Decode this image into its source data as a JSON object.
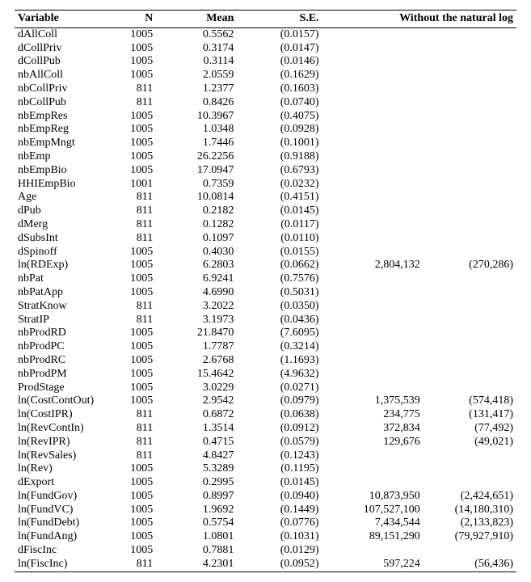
{
  "table": {
    "headers": {
      "variable": "Variable",
      "n": "N",
      "mean": "Mean",
      "se": "S.E.",
      "without": "Without the natural log"
    },
    "rows": [
      {
        "variable": "dAllColl",
        "n": "1005",
        "mean": "0.5562",
        "se": "(0.0157)",
        "w1": "",
        "w2": ""
      },
      {
        "variable": "dCollPriv",
        "n": "1005",
        "mean": "0.3174",
        "se": "(0.0147)",
        "w1": "",
        "w2": ""
      },
      {
        "variable": "dCollPub",
        "n": "1005",
        "mean": "0.3114",
        "se": "(0.0146)",
        "w1": "",
        "w2": ""
      },
      {
        "variable": "nbAllColl",
        "n": "1005",
        "mean": "2.0559",
        "se": "(0.1629)",
        "w1": "",
        "w2": ""
      },
      {
        "variable": "nbCollPriv",
        "n": "811",
        "mean": "1.2377",
        "se": "(0.1603)",
        "w1": "",
        "w2": ""
      },
      {
        "variable": "nbCollPub",
        "n": "811",
        "mean": "0.8426",
        "se": "(0.0740)",
        "w1": "",
        "w2": ""
      },
      {
        "variable": "nbEmpRes",
        "n": "1005",
        "mean": "10.3967",
        "se": "(0.4075)",
        "w1": "",
        "w2": ""
      },
      {
        "variable": "nbEmpReg",
        "n": "1005",
        "mean": "1.0348",
        "se": "(0.0928)",
        "w1": "",
        "w2": ""
      },
      {
        "variable": "nbEmpMngt",
        "n": "1005",
        "mean": "1.7446",
        "se": "(0.1001)",
        "w1": "",
        "w2": ""
      },
      {
        "variable": "nbEmp",
        "n": "1005",
        "mean": "26.2256",
        "se": "(0.9188)",
        "w1": "",
        "w2": ""
      },
      {
        "variable": "nbEmpBio",
        "n": "1005",
        "mean": "17.0947",
        "se": "(0.6793)",
        "w1": "",
        "w2": ""
      },
      {
        "variable": "HHIEmpBio",
        "n": "1001",
        "mean": "0.7359",
        "se": "(0.0232)",
        "w1": "",
        "w2": ""
      },
      {
        "variable": "Age",
        "n": "811",
        "mean": "10.0814",
        "se": "(0.4151)",
        "w1": "",
        "w2": ""
      },
      {
        "variable": "dPub",
        "n": "811",
        "mean": "0.2182",
        "se": "(0.0145)",
        "w1": "",
        "w2": ""
      },
      {
        "variable": "dMerg",
        "n": "811",
        "mean": "0.1282",
        "se": "(0.0117)",
        "w1": "",
        "w2": ""
      },
      {
        "variable": "dSubsInt",
        "n": "811",
        "mean": "0.1097",
        "se": "(0.0110)",
        "w1": "",
        "w2": ""
      },
      {
        "variable": "dSpinoff",
        "n": "1005",
        "mean": "0.4030",
        "se": "(0.0155)",
        "w1": "",
        "w2": ""
      },
      {
        "variable": "ln(RDExp)",
        "n": "1005",
        "mean": "6.2803",
        "se": "(0.0662)",
        "w1": "2,804,132",
        "w2": "(270,286)"
      },
      {
        "variable": "nbPat",
        "n": "1005",
        "mean": "6.9241",
        "se": "(0.7576)",
        "w1": "",
        "w2": ""
      },
      {
        "variable": "nbPatApp",
        "n": "1005",
        "mean": "4.6990",
        "se": "(0.5031)",
        "w1": "",
        "w2": ""
      },
      {
        "variable": "StratKnow",
        "n": "811",
        "mean": "3.2022",
        "se": "(0.0350)",
        "w1": "",
        "w2": ""
      },
      {
        "variable": "StratIP",
        "n": "811",
        "mean": "3.1973",
        "se": "(0.0436)",
        "w1": "",
        "w2": ""
      },
      {
        "variable": "nbProdRD",
        "n": "1005",
        "mean": "21.8470",
        "se": "(7.6095)",
        "w1": "",
        "w2": ""
      },
      {
        "variable": "nbProdPC",
        "n": "1005",
        "mean": "1.7787",
        "se": "(0.3214)",
        "w1": "",
        "w2": ""
      },
      {
        "variable": "nbProdRC",
        "n": "1005",
        "mean": "2.6768",
        "se": "(1.1693)",
        "w1": "",
        "w2": ""
      },
      {
        "variable": "nbProdPM",
        "n": "1005",
        "mean": "15.4642",
        "se": "(4.9632)",
        "w1": "",
        "w2": ""
      },
      {
        "variable": "ProdStage",
        "n": "1005",
        "mean": "3.0229",
        "se": "(0.0271)",
        "w1": "",
        "w2": ""
      },
      {
        "variable": "ln(CostContOut)",
        "n": "1005",
        "mean": "2.9542",
        "se": "(0.0979)",
        "w1": "1,375,539",
        "w2": "(574,418)"
      },
      {
        "variable": "ln(CostIPR)",
        "n": "811",
        "mean": "0.6872",
        "se": "(0.0638)",
        "w1": "234,775",
        "w2": "(131,417)"
      },
      {
        "variable": "ln(RevContIn)",
        "n": "811",
        "mean": "1.3514",
        "se": "(0.0912)",
        "w1": "372,834",
        "w2": "(77,492)"
      },
      {
        "variable": "ln(RevIPR)",
        "n": "811",
        "mean": "0.4715",
        "se": "(0.0579)",
        "w1": "129,676",
        "w2": "(49,021)"
      },
      {
        "variable": "ln(RevSales)",
        "n": "811",
        "mean": "4.8427",
        "se": "(0.1243)",
        "w1": "",
        "w2": ""
      },
      {
        "variable": "ln(Rev)",
        "n": "1005",
        "mean": "5.3289",
        "se": "(0.1195)",
        "w1": "",
        "w2": ""
      },
      {
        "variable": "dExport",
        "n": "1005",
        "mean": "0.2995",
        "se": "(0.0145)",
        "w1": "",
        "w2": ""
      },
      {
        "variable": "ln(FundGov)",
        "n": "1005",
        "mean": "0.8997",
        "se": "(0.0940)",
        "w1": "10,873,950",
        "w2": "(2,424,651)"
      },
      {
        "variable": "ln(FundVC)",
        "n": "1005",
        "mean": "1.9692",
        "se": "(0.1449)",
        "w1": "107,527,100",
        "w2": "(14,180,310)"
      },
      {
        "variable": "ln(FundDebt)",
        "n": "1005",
        "mean": "0.5754",
        "se": "(0.0776)",
        "w1": "7,434,544",
        "w2": "(2,133,823)"
      },
      {
        "variable": "ln(FundAng)",
        "n": "1005",
        "mean": "1.0801",
        "se": "(0.1031)",
        "w1": "89,151,290",
        "w2": "(79,927,910)"
      },
      {
        "variable": "dFiscInc",
        "n": "1005",
        "mean": "0.7881",
        "se": "(0.0129)",
        "w1": "",
        "w2": ""
      },
      {
        "variable": "ln(FiscInc)",
        "n": "811",
        "mean": "4.2301",
        "se": "(0.0952)",
        "w1": "597,224",
        "w2": "(56,436)"
      }
    ]
  }
}
